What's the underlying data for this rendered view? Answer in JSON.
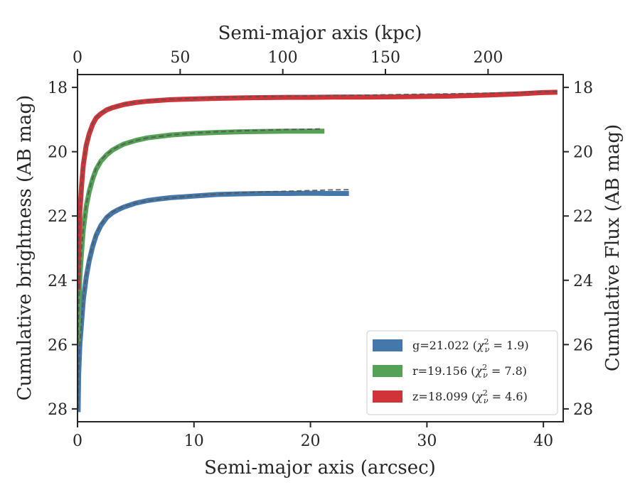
{
  "chart_data": {
    "type": "line",
    "xlabel": "Semi-major axis (arcsec)",
    "x2label": "Semi-major axis (kpc)",
    "ylabel": "Cumulative brightness (AB mag)",
    "y2label": "Cumulative Flux (AB mag)",
    "xlim": [
      0,
      41.7
    ],
    "x2lim": [
      0,
      236.6
    ],
    "ylim": [
      28.4,
      17.6
    ],
    "y_inverted": true,
    "x_ticks": [
      0,
      10,
      20,
      30,
      40
    ],
    "x2_ticks": [
      0,
      50,
      100,
      150,
      200
    ],
    "y_ticks": [
      18,
      20,
      22,
      24,
      26,
      28
    ],
    "grid": false,
    "legend_position": "lower-right",
    "series": [
      {
        "name": "g=21.022",
        "chi2": "1.9",
        "color": "#4477aa",
        "x": [
          0.05,
          0.1,
          0.2,
          0.35,
          0.5,
          0.75,
          1.0,
          1.3,
          1.6,
          2.0,
          2.5,
          3.0,
          3.5,
          4.0,
          5.0,
          6.0,
          7.0,
          8.0,
          10.0,
          12.0,
          14.0,
          16.0,
          18.0,
          20.0,
          21.5,
          23.3
        ],
        "y": [
          28.1,
          26.9,
          26.0,
          25.3,
          24.6,
          23.9,
          23.4,
          22.95,
          22.6,
          22.3,
          22.05,
          21.9,
          21.8,
          21.72,
          21.6,
          21.52,
          21.47,
          21.43,
          21.38,
          21.33,
          21.31,
          21.3,
          21.3,
          21.29,
          21.3,
          21.3
        ]
      },
      {
        "name": "r=19.156",
        "chi2": "7.8",
        "color": "#55a155",
        "x": [
          0.05,
          0.1,
          0.2,
          0.35,
          0.5,
          0.75,
          1.0,
          1.3,
          1.6,
          2.0,
          2.5,
          3.0,
          3.5,
          4.0,
          5.0,
          6.0,
          8.0,
          10.0,
          12.0,
          14.0,
          16.0,
          18.0,
          20.0,
          21.2
        ],
        "y": [
          26.0,
          24.9,
          23.9,
          23.1,
          22.4,
          21.7,
          21.25,
          20.85,
          20.55,
          20.3,
          20.1,
          19.95,
          19.85,
          19.76,
          19.65,
          19.57,
          19.48,
          19.43,
          19.4,
          19.38,
          19.37,
          19.36,
          19.36,
          19.36
        ]
      },
      {
        "name": "z=18.099",
        "chi2": "4.6",
        "color": "#d13438",
        "x": [
          0.05,
          0.1,
          0.2,
          0.35,
          0.5,
          0.75,
          1.0,
          1.3,
          1.6,
          2.0,
          2.5,
          3.0,
          3.5,
          4.0,
          5.0,
          6.0,
          8.0,
          10.0,
          12.0,
          15.0,
          18.0,
          20.0,
          22.0,
          25.0,
          28.0,
          30.0,
          32.0,
          35.0,
          38.0,
          40.0,
          41.2
        ],
        "y": [
          24.3,
          22.9,
          21.9,
          21.05,
          20.4,
          19.8,
          19.45,
          19.15,
          18.95,
          18.82,
          18.7,
          18.63,
          18.58,
          18.53,
          18.47,
          18.43,
          18.38,
          18.36,
          18.34,
          18.32,
          18.31,
          18.31,
          18.3,
          18.3,
          18.29,
          18.28,
          18.27,
          18.24,
          18.2,
          18.16,
          18.15
        ]
      }
    ],
    "model_series": [
      {
        "color": "#555555",
        "x": [
          0.05,
          0.1,
          0.2,
          0.35,
          0.5,
          0.75,
          1.0,
          1.3,
          1.6,
          2.0,
          2.5,
          3.0,
          3.5,
          4.0,
          5.0,
          6.0,
          7.0,
          8.0,
          10.0,
          12.0,
          14.0,
          16.0,
          18.0,
          20.0,
          21.5,
          23.3
        ],
        "y": [
          28.0,
          26.85,
          25.95,
          25.25,
          24.55,
          23.85,
          23.35,
          22.9,
          22.55,
          22.27,
          22.03,
          21.88,
          21.78,
          21.7,
          21.6,
          21.53,
          21.48,
          21.44,
          21.37,
          21.32,
          21.28,
          21.25,
          21.23,
          21.21,
          21.19,
          21.18
        ]
      },
      {
        "color": "#555555",
        "x": [
          0.05,
          0.1,
          0.2,
          0.35,
          0.5,
          0.75,
          1.0,
          1.3,
          1.6,
          2.0,
          2.5,
          3.0,
          3.5,
          4.0,
          5.0,
          6.0,
          8.0,
          10.0,
          12.0,
          14.0,
          16.0,
          18.0,
          20.0,
          21.0
        ],
        "y": [
          25.95,
          24.85,
          23.85,
          23.05,
          22.35,
          21.65,
          21.2,
          20.82,
          20.52,
          20.27,
          20.08,
          19.94,
          19.84,
          19.76,
          19.65,
          19.57,
          19.48,
          19.42,
          19.38,
          19.35,
          19.33,
          19.31,
          19.3,
          19.29
        ]
      },
      {
        "color": "#555555",
        "x": [
          0.05,
          0.1,
          0.2,
          0.35,
          0.5,
          0.75,
          1.0,
          1.3,
          1.6,
          2.0,
          2.5,
          3.0,
          3.5,
          4.0,
          5.0,
          6.0,
          8.0,
          10.0,
          12.0,
          15.0,
          18.0,
          20.0,
          22.0,
          25.0,
          28.0,
          30.0,
          32.0,
          35.0,
          38.0,
          40.0,
          41.2
        ],
        "y": [
          24.25,
          22.85,
          21.85,
          21.0,
          20.35,
          19.77,
          19.42,
          19.13,
          18.93,
          18.8,
          18.69,
          18.62,
          18.57,
          18.52,
          18.46,
          18.42,
          18.37,
          18.34,
          18.32,
          18.29,
          18.27,
          18.26,
          18.25,
          18.24,
          18.22,
          18.21,
          18.2,
          18.18,
          18.16,
          18.14,
          18.13
        ]
      }
    ]
  }
}
